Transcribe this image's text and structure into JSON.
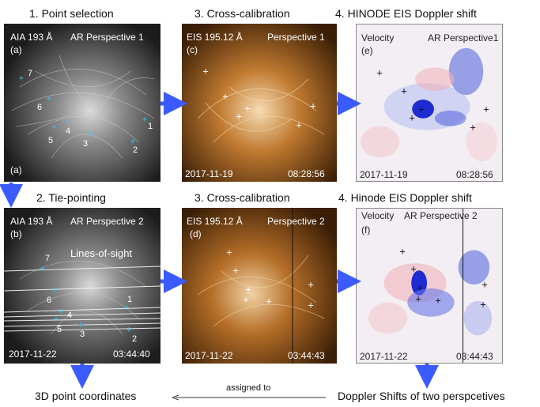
{
  "titles": {
    "t1": "1. Point selection",
    "t2": "3. Cross-calibration",
    "t3": "4.  HINODE EIS Doppler shift",
    "t4": "2. Tie-pointing",
    "t5": "3. Cross-calibration",
    "t6": "4.  Hinode EIS  Doppler shift"
  },
  "panel_a": {
    "instrument": "AIA 193 Å",
    "perspective": "AR Perspective 1",
    "letter": "(a)",
    "letter_bottom": "(a)",
    "points": [
      "1",
      "2",
      "3",
      "4",
      "5",
      "6",
      "7"
    ]
  },
  "panel_c": {
    "instrument": "EIS 195.12 Å",
    "perspective": "Perspective 1",
    "letter": "(c)",
    "date": "2017-11-19",
    "time": "08:28:56"
  },
  "panel_e": {
    "label": "Velocity",
    "perspective": "AR Perspective1",
    "letter": "(e)",
    "date": "2017-11-19",
    "time": "08:28:56"
  },
  "panel_b": {
    "instrument": "AIA 193 Å",
    "perspective": "AR Perspective 2",
    "letter": "(b)",
    "los_label": "Lines-of-sight",
    "date": "2017-11-22",
    "time": "03:44:40",
    "points": [
      "1",
      "2",
      "3",
      "4",
      "5",
      "6",
      "7"
    ]
  },
  "panel_d": {
    "instrument": "EIS 195.12 Å",
    "perspective": "Perspective 2",
    "letter": "(d)",
    "date": "2017-11-22",
    "time": "03:44:43"
  },
  "panel_f": {
    "label": "Velocity",
    "perspective": "AR Perspective 2",
    "letter": "(f)",
    "date": "2017-11-22",
    "time": "03:44:43"
  },
  "bottom": {
    "left": "3D point coordinates",
    "middle": "assigned to",
    "right": "Doppler Shifts of two perspcetives"
  },
  "colors": {
    "arrow": "#3b5bff",
    "aia_bg": "#1a1a1a",
    "eis_bg": "#8a5418",
    "doppler_bg": "#f4f0f4"
  }
}
